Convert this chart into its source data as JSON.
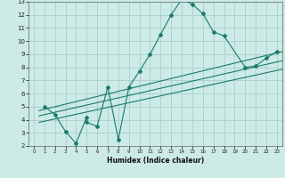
{
  "xlabel": "Humidex (Indice chaleur)",
  "bg_color": "#cceae6",
  "grid_color": "#aacfcb",
  "line_color": "#1a7a6e",
  "xlim": [
    -0.5,
    23.5
  ],
  "ylim": [
    2,
    13
  ],
  "xticks": [
    0,
    1,
    2,
    3,
    4,
    5,
    6,
    7,
    8,
    9,
    10,
    11,
    12,
    13,
    14,
    15,
    16,
    17,
    18,
    19,
    20,
    21,
    22,
    23
  ],
  "yticks": [
    2,
    3,
    4,
    5,
    6,
    7,
    8,
    9,
    10,
    11,
    12,
    13
  ],
  "scatter_x": [
    1,
    2,
    3,
    4,
    5,
    5,
    6,
    7,
    8,
    9,
    10,
    11,
    12,
    13,
    14,
    15,
    16,
    17,
    18,
    20,
    21,
    22,
    23
  ],
  "scatter_y": [
    5.0,
    4.4,
    3.1,
    2.2,
    4.2,
    3.8,
    3.5,
    6.5,
    2.5,
    6.5,
    7.7,
    9.0,
    10.5,
    12.0,
    13.2,
    12.8,
    12.1,
    10.7,
    10.4,
    8.0,
    8.1,
    8.7,
    9.2
  ],
  "line1_x": [
    0.5,
    23.5
  ],
  "line1_y": [
    4.7,
    9.2
  ],
  "line2_x": [
    0.5,
    23.5
  ],
  "line2_y": [
    4.3,
    8.5
  ],
  "line3_x": [
    0.5,
    23.5
  ],
  "line3_y": [
    3.8,
    7.85
  ]
}
